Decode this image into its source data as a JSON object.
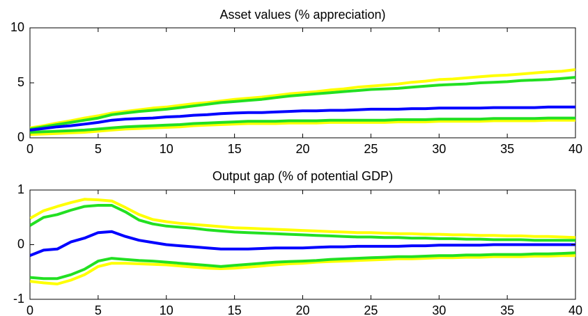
{
  "chart_data": [
    {
      "type": "line",
      "title": "Asset values (% appreciation)",
      "x": [
        0,
        1,
        2,
        3,
        4,
        5,
        6,
        7,
        8,
        9,
        10,
        11,
        12,
        13,
        14,
        15,
        16,
        17,
        18,
        19,
        20,
        21,
        22,
        23,
        24,
        25,
        26,
        27,
        28,
        29,
        30,
        31,
        32,
        33,
        34,
        35,
        36,
        37,
        38,
        39,
        40
      ],
      "xlim": [
        0,
        40
      ],
      "xticks": [
        0,
        5,
        10,
        15,
        20,
        25,
        30,
        35,
        40
      ],
      "ylim": [
        0,
        10
      ],
      "yticks": [
        0,
        5,
        10
      ],
      "series": [
        {
          "color": "#ffff00",
          "values": [
            0.9,
            1.1,
            1.35,
            1.55,
            1.8,
            2.0,
            2.25,
            2.4,
            2.55,
            2.7,
            2.8,
            2.95,
            3.1,
            3.2,
            3.35,
            3.5,
            3.6,
            3.7,
            3.85,
            4.0,
            4.1,
            4.2,
            4.35,
            4.45,
            4.6,
            4.7,
            4.8,
            4.9,
            5.05,
            5.15,
            5.3,
            5.35,
            5.45,
            5.55,
            5.65,
            5.7,
            5.8,
            5.9,
            6.0,
            6.05,
            6.2
          ]
        },
        {
          "color": "#ffff00",
          "values": [
            0.3,
            0.35,
            0.4,
            0.45,
            0.5,
            0.6,
            0.7,
            0.8,
            0.85,
            0.9,
            0.95,
            1.0,
            1.1,
            1.15,
            1.2,
            1.25,
            1.3,
            1.3,
            1.3,
            1.35,
            1.35,
            1.35,
            1.4,
            1.4,
            1.4,
            1.4,
            1.4,
            1.45,
            1.45,
            1.45,
            1.5,
            1.5,
            1.5,
            1.5,
            1.55,
            1.55,
            1.55,
            1.55,
            1.6,
            1.6,
            1.6
          ]
        },
        {
          "color": "#22e022",
          "values": [
            0.8,
            1.0,
            1.2,
            1.4,
            1.6,
            1.8,
            2.1,
            2.25,
            2.4,
            2.5,
            2.6,
            2.75,
            2.9,
            3.05,
            3.2,
            3.3,
            3.4,
            3.5,
            3.65,
            3.8,
            3.9,
            4.0,
            4.1,
            4.2,
            4.3,
            4.4,
            4.45,
            4.5,
            4.6,
            4.7,
            4.8,
            4.85,
            4.9,
            5.0,
            5.05,
            5.1,
            5.2,
            5.25,
            5.3,
            5.4,
            5.5
          ]
        },
        {
          "color": "#22e022",
          "values": [
            0.5,
            0.55,
            0.6,
            0.65,
            0.7,
            0.8,
            0.9,
            1.0,
            1.05,
            1.1,
            1.15,
            1.2,
            1.3,
            1.35,
            1.4,
            1.45,
            1.5,
            1.5,
            1.5,
            1.55,
            1.55,
            1.55,
            1.6,
            1.6,
            1.6,
            1.6,
            1.6,
            1.65,
            1.65,
            1.65,
            1.7,
            1.7,
            1.7,
            1.7,
            1.75,
            1.75,
            1.75,
            1.75,
            1.8,
            1.8,
            1.8
          ]
        },
        {
          "color": "#0000ff",
          "values": [
            0.7,
            0.85,
            1.0,
            1.1,
            1.25,
            1.4,
            1.6,
            1.7,
            1.75,
            1.8,
            1.9,
            1.95,
            2.05,
            2.1,
            2.2,
            2.25,
            2.3,
            2.3,
            2.35,
            2.4,
            2.45,
            2.45,
            2.5,
            2.5,
            2.55,
            2.6,
            2.6,
            2.6,
            2.65,
            2.65,
            2.7,
            2.7,
            2.7,
            2.7,
            2.75,
            2.75,
            2.75,
            2.75,
            2.8,
            2.8,
            2.8
          ]
        }
      ]
    },
    {
      "type": "line",
      "title": "Output gap (% of potential GDP)",
      "x": [
        0,
        1,
        2,
        3,
        4,
        5,
        6,
        7,
        8,
        9,
        10,
        11,
        12,
        13,
        14,
        15,
        16,
        17,
        18,
        19,
        20,
        21,
        22,
        23,
        24,
        25,
        26,
        27,
        28,
        29,
        30,
        31,
        32,
        33,
        34,
        35,
        36,
        37,
        38,
        39,
        40
      ],
      "xlim": [
        0,
        40
      ],
      "xticks": [
        0,
        5,
        10,
        15,
        20,
        25,
        30,
        35,
        40
      ],
      "ylim": [
        -1,
        1
      ],
      "yticks": [
        -1,
        0,
        1
      ],
      "series": [
        {
          "color": "#ffff00",
          "values": [
            0.48,
            0.62,
            0.7,
            0.77,
            0.83,
            0.82,
            0.8,
            0.68,
            0.55,
            0.46,
            0.42,
            0.39,
            0.37,
            0.35,
            0.33,
            0.31,
            0.3,
            0.29,
            0.28,
            0.27,
            0.26,
            0.25,
            0.24,
            0.23,
            0.22,
            0.22,
            0.21,
            0.2,
            0.2,
            0.19,
            0.19,
            0.18,
            0.18,
            0.17,
            0.17,
            0.16,
            0.16,
            0.15,
            0.15,
            0.14,
            0.13
          ]
        },
        {
          "color": "#ffff00",
          "values": [
            -0.67,
            -0.7,
            -0.72,
            -0.65,
            -0.55,
            -0.4,
            -0.34,
            -0.34,
            -0.35,
            -0.36,
            -0.37,
            -0.39,
            -0.41,
            -0.43,
            -0.44,
            -0.43,
            -0.41,
            -0.39,
            -0.37,
            -0.35,
            -0.34,
            -0.32,
            -0.31,
            -0.3,
            -0.29,
            -0.28,
            -0.27,
            -0.26,
            -0.26,
            -0.25,
            -0.24,
            -0.24,
            -0.23,
            -0.23,
            -0.22,
            -0.22,
            -0.22,
            -0.21,
            -0.21,
            -0.2,
            -0.2
          ]
        },
        {
          "color": "#22e022",
          "values": [
            0.35,
            0.5,
            0.55,
            0.63,
            0.7,
            0.72,
            0.72,
            0.6,
            0.45,
            0.38,
            0.34,
            0.32,
            0.3,
            0.27,
            0.25,
            0.23,
            0.22,
            0.21,
            0.2,
            0.19,
            0.18,
            0.17,
            0.16,
            0.15,
            0.14,
            0.14,
            0.13,
            0.13,
            0.12,
            0.12,
            0.11,
            0.11,
            0.1,
            0.1,
            0.09,
            0.09,
            0.09,
            0.08,
            0.08,
            0.08,
            0.08
          ]
        },
        {
          "color": "#22e022",
          "values": [
            -0.6,
            -0.62,
            -0.62,
            -0.55,
            -0.45,
            -0.3,
            -0.25,
            -0.27,
            -0.29,
            -0.3,
            -0.32,
            -0.34,
            -0.36,
            -0.38,
            -0.4,
            -0.38,
            -0.36,
            -0.34,
            -0.32,
            -0.31,
            -0.3,
            -0.29,
            -0.27,
            -0.26,
            -0.25,
            -0.24,
            -0.23,
            -0.22,
            -0.22,
            -0.21,
            -0.2,
            -0.2,
            -0.19,
            -0.19,
            -0.18,
            -0.18,
            -0.18,
            -0.17,
            -0.17,
            -0.16,
            -0.15
          ]
        },
        {
          "color": "#0000ff",
          "values": [
            -0.2,
            -0.1,
            -0.08,
            0.05,
            0.12,
            0.22,
            0.24,
            0.15,
            0.08,
            0.04,
            0,
            -0.02,
            -0.04,
            -0.06,
            -0.08,
            -0.08,
            -0.08,
            -0.07,
            -0.06,
            -0.06,
            -0.06,
            -0.05,
            -0.04,
            -0.04,
            -0.03,
            -0.03,
            -0.03,
            -0.03,
            -0.02,
            -0.02,
            -0.01,
            -0.01,
            -0.01,
            -0.01,
            0,
            0,
            0,
            0,
            0,
            0,
            0
          ]
        }
      ]
    }
  ]
}
